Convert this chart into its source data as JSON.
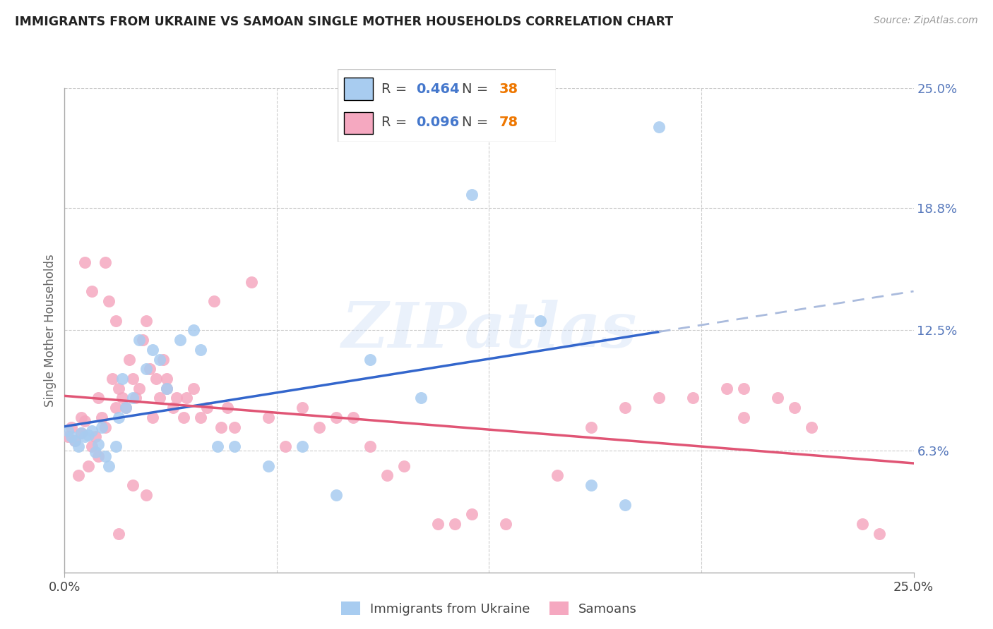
{
  "title": "IMMIGRANTS FROM UKRAINE VS SAMOAN SINGLE MOTHER HOUSEHOLDS CORRELATION CHART",
  "source": "Source: ZipAtlas.com",
  "ylabel": "Single Mother Households",
  "x_min": 0.0,
  "x_max": 0.25,
  "y_min": 0.0,
  "y_max": 0.25,
  "y_ticks": [
    0.0,
    0.063,
    0.125,
    0.188,
    0.25
  ],
  "y_tick_labels": [
    "",
    "6.3%",
    "12.5%",
    "18.8%",
    "25.0%"
  ],
  "grid_color": "#cccccc",
  "background_color": "#ffffff",
  "ukraine_color": "#a8ccf0",
  "samoan_color": "#f5a8c0",
  "trend_ukraine_solid_color": "#3366cc",
  "trend_ukraine_dashed_color": "#aabbdd",
  "trend_samoan_color": "#e05575",
  "ukraine_R": "0.464",
  "ukraine_N": "38",
  "samoan_R": "0.096",
  "samoan_N": "78",
  "legend_label_ukraine": "Immigrants from Ukraine",
  "legend_label_samoan": "Samoans",
  "watermark_text": "ZIPatlas",
  "r_color": "#4477cc",
  "n_color": "#ee7700",
  "ukraine_scatter_x": [
    0.001,
    0.002,
    0.003,
    0.004,
    0.005,
    0.006,
    0.007,
    0.008,
    0.009,
    0.01,
    0.011,
    0.012,
    0.013,
    0.015,
    0.016,
    0.017,
    0.018,
    0.02,
    0.022,
    0.024,
    0.026,
    0.028,
    0.03,
    0.034,
    0.038,
    0.04,
    0.045,
    0.05,
    0.06,
    0.07,
    0.08,
    0.09,
    0.105,
    0.12,
    0.14,
    0.155,
    0.165,
    0.175
  ],
  "ukraine_scatter_y": [
    0.073,
    0.07,
    0.068,
    0.065,
    0.072,
    0.07,
    0.071,
    0.073,
    0.062,
    0.066,
    0.075,
    0.06,
    0.055,
    0.065,
    0.08,
    0.1,
    0.085,
    0.09,
    0.12,
    0.105,
    0.115,
    0.11,
    0.095,
    0.12,
    0.125,
    0.115,
    0.065,
    0.065,
    0.055,
    0.065,
    0.04,
    0.11,
    0.09,
    0.195,
    0.13,
    0.045,
    0.035,
    0.23
  ],
  "samoan_scatter_x": [
    0.001,
    0.002,
    0.003,
    0.004,
    0.005,
    0.005,
    0.006,
    0.007,
    0.008,
    0.009,
    0.01,
    0.01,
    0.011,
    0.012,
    0.013,
    0.014,
    0.015,
    0.015,
    0.016,
    0.017,
    0.018,
    0.019,
    0.02,
    0.021,
    0.022,
    0.023,
    0.024,
    0.025,
    0.026,
    0.027,
    0.028,
    0.029,
    0.03,
    0.032,
    0.033,
    0.035,
    0.036,
    0.038,
    0.04,
    0.042,
    0.044,
    0.046,
    0.048,
    0.05,
    0.055,
    0.06,
    0.065,
    0.07,
    0.075,
    0.08,
    0.085,
    0.09,
    0.095,
    0.1,
    0.11,
    0.115,
    0.12,
    0.13,
    0.145,
    0.155,
    0.165,
    0.175,
    0.185,
    0.195,
    0.2,
    0.21,
    0.215,
    0.22,
    0.235,
    0.24,
    0.006,
    0.008,
    0.012,
    0.016,
    0.02,
    0.024,
    0.03,
    0.2
  ],
  "samoan_scatter_y": [
    0.07,
    0.075,
    0.068,
    0.05,
    0.072,
    0.08,
    0.078,
    0.055,
    0.065,
    0.07,
    0.09,
    0.06,
    0.08,
    0.075,
    0.14,
    0.1,
    0.13,
    0.085,
    0.095,
    0.09,
    0.085,
    0.11,
    0.1,
    0.09,
    0.095,
    0.12,
    0.13,
    0.105,
    0.08,
    0.1,
    0.09,
    0.11,
    0.095,
    0.085,
    0.09,
    0.08,
    0.09,
    0.095,
    0.08,
    0.085,
    0.14,
    0.075,
    0.085,
    0.075,
    0.15,
    0.08,
    0.065,
    0.085,
    0.075,
    0.08,
    0.08,
    0.065,
    0.05,
    0.055,
    0.025,
    0.025,
    0.03,
    0.025,
    0.05,
    0.075,
    0.085,
    0.09,
    0.09,
    0.095,
    0.08,
    0.09,
    0.085,
    0.075,
    0.025,
    0.02,
    0.16,
    0.145,
    0.16,
    0.02,
    0.045,
    0.04,
    0.1,
    0.095
  ]
}
